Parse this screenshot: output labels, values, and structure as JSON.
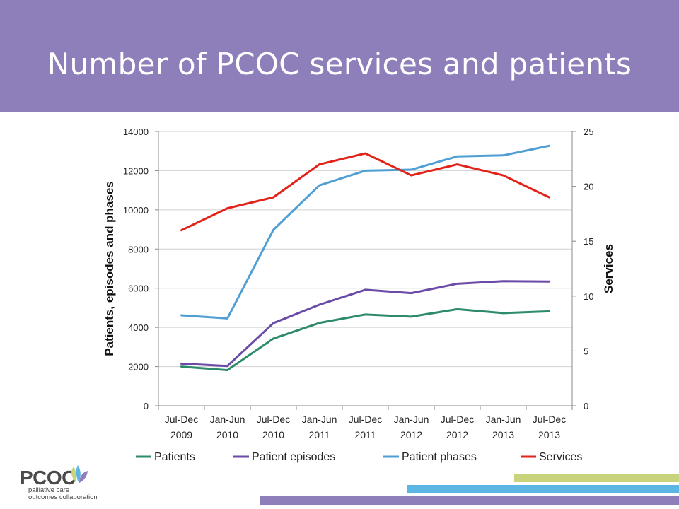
{
  "slide": {
    "title": "Number of PCOC services and patients",
    "header_color": "#8e7fbb"
  },
  "logo": {
    "name": "PCOC",
    "line1": "palliative care",
    "line2": "outcomes collaboration"
  },
  "colors": {
    "patients": "#2e8b6a",
    "episodes": "#6a4ba8",
    "phases": "#4f9fd4",
    "services": "#e2231a",
    "bar_green": "#c9d37b",
    "bar_blue": "#5bb6e4",
    "bar_purple": "#8e7fbb"
  },
  "chart_data": {
    "type": "line",
    "categories": [
      [
        "Jul-Dec",
        "2009"
      ],
      [
        "Jan-Jun",
        "2010"
      ],
      [
        "Jul-Dec",
        "2010"
      ],
      [
        "Jan-Jun",
        "2011"
      ],
      [
        "Jul-Dec",
        "2011"
      ],
      [
        "Jan-Jun",
        "2012"
      ],
      [
        "Jul-Dec",
        "2012"
      ],
      [
        "Jan-Jun",
        "2013"
      ],
      [
        "Jul-Dec",
        "2013"
      ]
    ],
    "ylabel": "Patients, episodes and phases",
    "y2label": "Services",
    "ylim": [
      0,
      14000
    ],
    "yticks": [
      "0",
      "2000",
      "4000",
      "6000",
      "8000",
      "10000",
      "12000",
      "14000"
    ],
    "y2lim": [
      0,
      25
    ],
    "y2ticks": [
      "0",
      "5",
      "10",
      "15",
      "20",
      "25"
    ],
    "grid": true,
    "legend_position": "bottom",
    "series": [
      {
        "name": "Patients",
        "axis": "left",
        "color_key": "patients",
        "values": [
          2000,
          1820,
          3430,
          4230,
          4660,
          4550,
          4930,
          4730,
          4820
        ]
      },
      {
        "name": "Patient episodes",
        "axis": "left",
        "color_key": "episodes",
        "values": [
          2150,
          2030,
          4220,
          5160,
          5920,
          5750,
          6230,
          6360,
          6340
        ]
      },
      {
        "name": "Patient phases",
        "axis": "left",
        "color_key": "phases",
        "values": [
          4620,
          4460,
          8980,
          11250,
          12000,
          12050,
          12730,
          12780,
          13270
        ]
      },
      {
        "name": "Services",
        "axis": "right",
        "color_key": "services",
        "values": [
          16,
          18,
          19,
          22,
          23,
          21,
          22,
          21,
          19
        ]
      }
    ]
  }
}
